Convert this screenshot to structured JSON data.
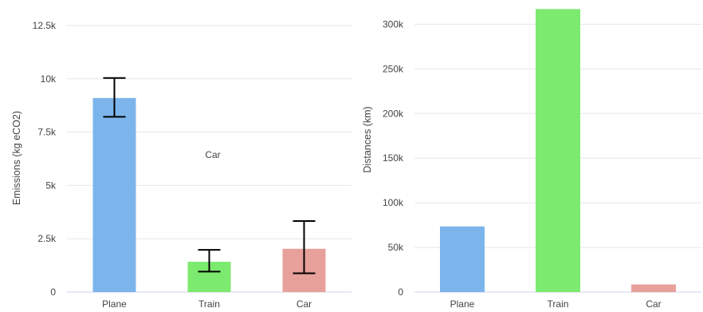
{
  "chart_data": [
    {
      "type": "bar",
      "categories": [
        "Plane",
        "Train",
        "Car"
      ],
      "values": [
        9100,
        1420,
        2030
      ],
      "error_bars": [
        {
          "low": 8220,
          "high": 10040
        },
        {
          "low": 960,
          "high": 1980
        },
        {
          "low": 880,
          "high": 3330
        }
      ],
      "colors": [
        "#7cb5ec",
        "#7cea6e",
        "#e8a09a"
      ],
      "ylabel": "Emissions (kg eCO2)",
      "xlabel": "",
      "ylim": [
        0,
        12500
      ],
      "yticks": [
        0,
        2500,
        5000,
        7500,
        10000,
        12500
      ],
      "ytick_labels": [
        "0",
        "2.5k",
        "5k",
        "7.5k",
        "10k",
        "12.5k"
      ],
      "annotations": [
        {
          "text": "Car"
        }
      ],
      "grid": true
    },
    {
      "type": "bar",
      "categories": [
        "Plane",
        "Train",
        "Car"
      ],
      "values": [
        73500,
        317000,
        8500
      ],
      "colors": [
        "#7cb5ec",
        "#7cea6e",
        "#e8a09a"
      ],
      "ylabel": "Distances (km)",
      "xlabel": "",
      "ylim": [
        0,
        320000
      ],
      "yticks": [
        0,
        50000,
        100000,
        150000,
        200000,
        250000,
        300000
      ],
      "ytick_labels": [
        "0",
        "50k",
        "100k",
        "150k",
        "200k",
        "250k",
        "300k"
      ],
      "grid": true
    }
  ]
}
